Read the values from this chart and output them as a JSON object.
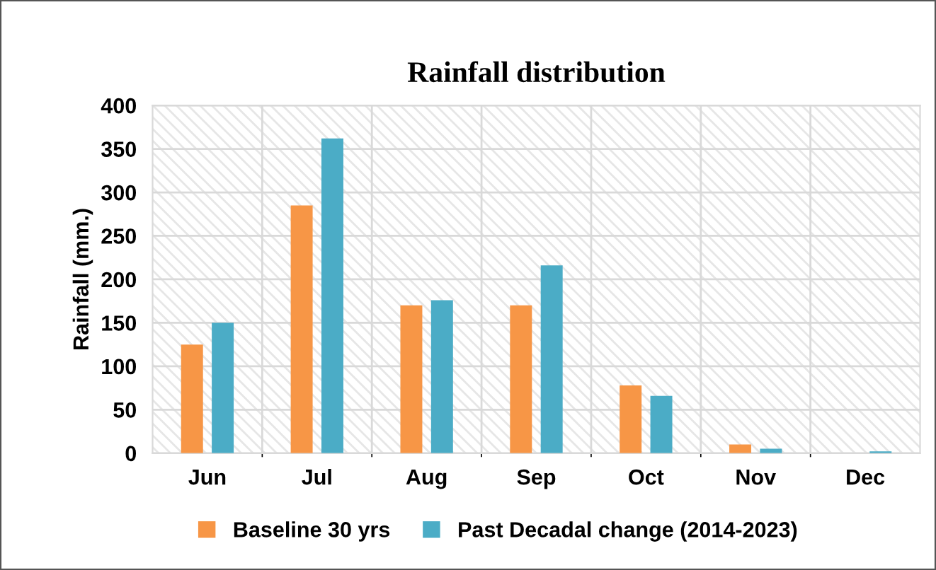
{
  "chart_data": {
    "type": "bar",
    "title": "Rainfall distribution",
    "ylabel": "Rainfall (mm.)",
    "categories": [
      "Jun",
      "Jul",
      "Aug",
      "Sep",
      "Oct",
      "Nov",
      "Dec"
    ],
    "series": [
      {
        "name": "Baseline 30 yrs",
        "color": "#f79646",
        "values": [
          125,
          285,
          170,
          170,
          78,
          10,
          0
        ]
      },
      {
        "name": "Past Decadal change (2014-2023)",
        "color": "#4bacc6",
        "values": [
          150,
          362,
          176,
          216,
          66,
          5,
          2
        ]
      }
    ],
    "ylim": [
      0,
      400
    ],
    "yticks": [
      0,
      50,
      100,
      150,
      200,
      250,
      300,
      350,
      400
    ],
    "grid": true,
    "legend": "bottom"
  }
}
